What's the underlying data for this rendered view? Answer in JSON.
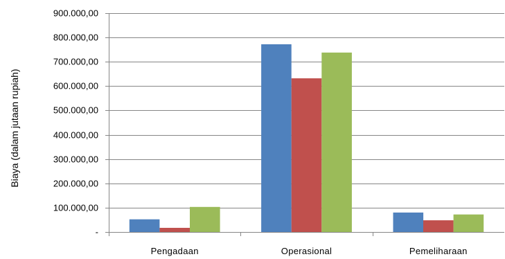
{
  "chart_data": {
    "type": "bar",
    "categories": [
      "Pengadaan",
      "Operasional",
      "Pemeliharaan"
    ],
    "series": [
      {
        "values": [
          52000,
          772000,
          80000
        ],
        "color": "#4f81bd"
      },
      {
        "values": [
          17000,
          632000,
          48000
        ],
        "color": "#c0504d"
      },
      {
        "values": [
          103000,
          738000,
          72000
        ],
        "color": "#9bbb59"
      }
    ],
    "ylabel": "Biaya (dalam jutaan rupiah)",
    "ylim": [
      0,
      900000
    ],
    "yticks": [
      {
        "value": 0,
        "label": "-"
      },
      {
        "value": 100000,
        "label": "100.000,00"
      },
      {
        "value": 200000,
        "label": "200.000,00"
      },
      {
        "value": 300000,
        "label": "300.000,00"
      },
      {
        "value": 400000,
        "label": "400.000,00"
      },
      {
        "value": 500000,
        "label": "500.000,00"
      },
      {
        "value": 600000,
        "label": "600.000,00"
      },
      {
        "value": 700000,
        "label": "700.000,00"
      },
      {
        "value": 800000,
        "label": "800.000,00"
      },
      {
        "value": 900000,
        "label": "900.000,00"
      }
    ],
    "grid": true,
    "legend": "none",
    "gridline_color": "#868686",
    "axis_color": "#868686"
  }
}
